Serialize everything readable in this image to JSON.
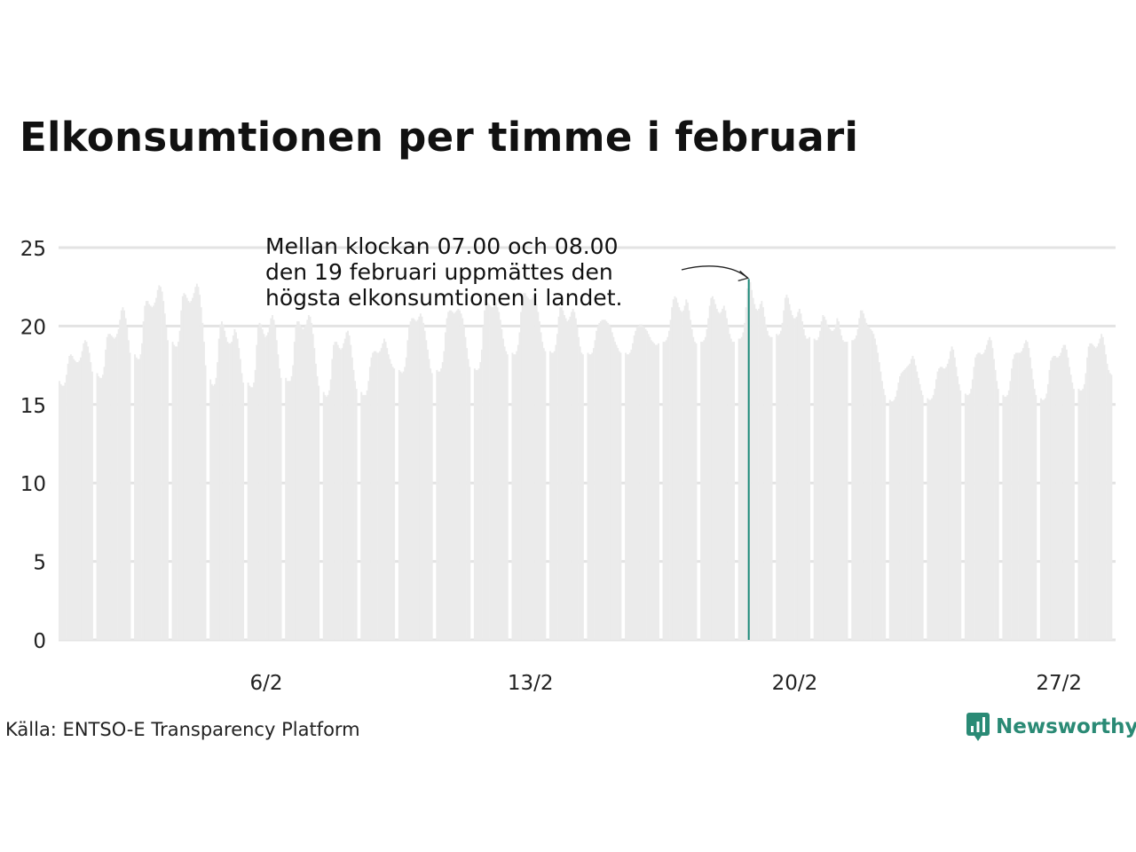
{
  "chart_data": {
    "type": "bar",
    "title": "Elkonsumtionen per timme i februari",
    "xlabel": "",
    "ylabel": "",
    "ylim": [
      0,
      25
    ],
    "yticks": [
      0,
      5,
      10,
      15,
      20,
      25
    ],
    "x_tick_labels": [
      {
        "day": 6,
        "label": "6/2"
      },
      {
        "day": 13,
        "label": "13/2"
      },
      {
        "day": 20,
        "label": "20/2"
      },
      {
        "day": 27,
        "label": "27/2"
      }
    ],
    "days_in_month": 28,
    "hours_per_day": 24,
    "daily_hourly_values": [
      [
        16.5,
        16.3,
        16.2,
        16.2,
        16.4,
        16.9,
        17.6,
        18.1,
        18.2,
        18.1,
        17.9,
        17.8,
        17.7,
        17.7,
        17.8,
        18.0,
        18.4,
        18.9,
        19.1,
        19.0,
        18.7,
        18.3,
        17.7,
        17.1
      ],
      [
        17.0,
        16.8,
        16.7,
        16.7,
        16.9,
        17.4,
        18.5,
        19.3,
        19.5,
        19.5,
        19.4,
        19.3,
        19.2,
        19.3,
        19.5,
        19.8,
        20.4,
        21.0,
        21.2,
        21.0,
        20.5,
        19.9,
        19.1,
        18.3
      ],
      [
        18.2,
        18.0,
        17.9,
        17.9,
        18.2,
        18.9,
        20.3,
        21.3,
        21.6,
        21.6,
        21.4,
        21.3,
        21.2,
        21.3,
        21.5,
        21.8,
        22.3,
        22.6,
        22.5,
        22.2,
        21.6,
        20.8,
        19.9,
        19.1
      ],
      [
        19.0,
        18.8,
        18.7,
        18.7,
        19.0,
        19.7,
        21.0,
        21.9,
        22.1,
        22.0,
        21.8,
        21.6,
        21.5,
        21.6,
        21.8,
        22.1,
        22.5,
        22.7,
        22.5,
        22.0,
        21.2,
        20.2,
        19.0,
        17.5
      ],
      [
        16.6,
        16.3,
        16.2,
        16.3,
        16.7,
        17.7,
        19.2,
        20.1,
        20.3,
        20.1,
        19.7,
        19.3,
        19.0,
        18.9,
        18.9,
        19.0,
        19.4,
        19.8,
        19.6,
        19.2,
        18.6,
        17.9,
        17.0,
        16.4
      ],
      [
        16.4,
        16.2,
        16.1,
        16.1,
        16.4,
        17.2,
        18.8,
        19.9,
        20.2,
        20.1,
        19.8,
        19.5,
        19.3,
        19.4,
        19.6,
        20.0,
        20.5,
        20.7,
        20.4,
        19.9,
        19.1,
        18.2,
        17.3,
        16.7
      ],
      [
        16.7,
        16.5,
        16.5,
        16.5,
        16.8,
        17.5,
        19.0,
        20.0,
        20.3,
        20.3,
        20.1,
        19.9,
        19.8,
        19.9,
        20.1,
        20.4,
        20.7,
        20.6,
        20.2,
        19.5,
        18.6,
        17.6,
        16.8,
        16.2
      ],
      [
        15.8,
        15.6,
        15.5,
        15.6,
        15.9,
        16.6,
        17.9,
        18.8,
        19.0,
        19.0,
        18.8,
        18.6,
        18.5,
        18.6,
        18.9,
        19.2,
        19.6,
        19.7,
        19.4,
        18.8,
        18.0,
        17.2,
        16.5,
        16.0
      ],
      [
        15.8,
        15.6,
        15.6,
        15.6,
        15.9,
        16.5,
        17.4,
        18.0,
        18.3,
        18.4,
        18.4,
        18.3,
        18.3,
        18.4,
        18.6,
        18.9,
        19.2,
        19.0,
        18.6,
        18.2,
        17.9,
        17.6,
        17.4,
        17.3
      ],
      [
        17.2,
        17.1,
        17.0,
        17.1,
        17.4,
        18.0,
        19.1,
        19.9,
        20.3,
        20.5,
        20.5,
        20.4,
        20.3,
        20.4,
        20.6,
        20.8,
        20.6,
        20.2,
        19.7,
        19.1,
        18.5,
        17.9,
        17.3,
        17.0
      ],
      [
        17.2,
        17.1,
        17.1,
        17.3,
        17.7,
        18.4,
        19.6,
        20.5,
        20.9,
        21.0,
        21.0,
        20.9,
        20.8,
        20.9,
        21.0,
        21.1,
        21.0,
        20.8,
        20.5,
        20.0,
        19.3,
        18.6,
        17.9,
        17.4
      ],
      [
        17.3,
        17.2,
        17.2,
        17.3,
        17.7,
        18.5,
        20.0,
        21.0,
        21.4,
        21.5,
        21.4,
        21.3,
        21.2,
        21.2,
        21.3,
        21.5,
        21.2,
        20.9,
        20.4,
        19.8,
        19.2,
        18.7,
        18.4,
        18.2
      ],
      [
        18.3,
        18.2,
        18.2,
        18.4,
        18.8,
        19.6,
        20.9,
        21.8,
        22.1,
        22.1,
        21.9,
        21.8,
        21.7,
        21.7,
        21.8,
        22.0,
        21.8,
        21.4,
        20.9,
        20.3,
        19.6,
        19.0,
        18.6,
        18.4
      ],
      [
        18.4,
        18.3,
        18.3,
        18.4,
        18.8,
        19.5,
        20.6,
        21.2,
        21.2,
        21.0,
        20.7,
        20.5,
        20.3,
        20.4,
        20.6,
        20.9,
        21.1,
        20.9,
        20.5,
        19.9,
        19.3,
        18.7,
        18.3,
        18.2
      ],
      [
        18.3,
        18.2,
        18.2,
        18.3,
        18.6,
        19.1,
        19.7,
        20.0,
        20.2,
        20.3,
        20.4,
        20.4,
        20.4,
        20.3,
        20.2,
        20.1,
        19.9,
        19.6,
        19.3,
        19.0,
        18.8,
        18.6,
        18.4,
        18.3
      ],
      [
        18.3,
        18.2,
        18.2,
        18.3,
        18.5,
        18.9,
        19.4,
        19.7,
        19.9,
        20.0,
        20.1,
        20.1,
        20.0,
        19.9,
        19.8,
        19.7,
        19.5,
        19.3,
        19.1,
        19.0,
        18.9,
        18.8,
        18.8,
        18.9
      ],
      [
        19.0,
        19.0,
        19.1,
        19.3,
        19.7,
        20.4,
        21.2,
        21.7,
        21.9,
        21.8,
        21.5,
        21.2,
        21.0,
        20.9,
        21.0,
        21.3,
        21.7,
        21.5,
        21.0,
        20.4,
        19.8,
        19.3,
        19.0,
        18.9
      ],
      [
        19.0,
        19.0,
        19.1,
        19.3,
        19.8,
        20.5,
        21.3,
        21.8,
        21.9,
        21.7,
        21.4,
        21.1,
        20.9,
        20.8,
        20.9,
        21.1,
        21.3,
        21.0,
        20.5,
        20.0,
        19.5,
        19.2,
        19.0,
        19.0
      ],
      [
        19.2,
        19.2,
        19.3,
        19.6,
        20.2,
        21.2,
        22.4,
        23.0,
        22.8,
        22.3,
        21.8,
        21.4,
        21.1,
        21.0,
        21.1,
        21.4,
        21.6,
        21.2,
        20.6,
        20.1,
        19.7,
        19.4,
        19.3,
        19.3
      ],
      [
        19.5,
        19.4,
        19.5,
        19.7,
        20.2,
        21.0,
        21.8,
        22.0,
        21.8,
        21.4,
        21.0,
        20.7,
        20.5,
        20.5,
        20.6,
        20.9,
        21.1,
        20.8,
        20.3,
        19.8,
        19.4,
        19.2,
        19.2,
        19.3
      ],
      [
        19.2,
        19.1,
        19.1,
        19.3,
        19.7,
        20.3,
        20.7,
        20.6,
        20.4,
        20.1,
        19.9,
        19.8,
        19.7,
        19.7,
        19.8,
        20.1,
        20.5,
        20.3,
        19.8,
        19.4,
        19.1,
        19.0,
        19.0,
        19.0
      ],
      [
        19.1,
        19.1,
        19.2,
        19.4,
        19.8,
        20.5,
        21.0,
        21.0,
        20.8,
        20.5,
        20.2,
        20.0,
        19.9,
        19.8,
        19.7,
        19.5,
        19.2,
        18.8,
        18.3,
        17.7,
        17.1,
        16.5,
        16.0,
        15.6
      ],
      [
        15.3,
        15.2,
        15.2,
        15.3,
        15.5,
        15.9,
        16.4,
        16.8,
        17.0,
        17.1,
        17.2,
        17.3,
        17.4,
        17.5,
        17.6,
        17.9,
        18.1,
        17.9,
        17.5,
        17.1,
        16.7,
        16.3,
        15.9,
        15.6
      ],
      [
        15.4,
        15.3,
        15.3,
        15.4,
        15.6,
        16.0,
        16.6,
        17.1,
        17.3,
        17.4,
        17.4,
        17.3,
        17.3,
        17.4,
        17.6,
        17.9,
        18.4,
        18.7,
        18.5,
        18.0,
        17.4,
        16.8,
        16.3,
        15.9
      ],
      [
        15.7,
        15.6,
        15.6,
        15.7,
        16.0,
        16.6,
        17.4,
        18.0,
        18.2,
        18.3,
        18.3,
        18.2,
        18.2,
        18.3,
        18.5,
        18.8,
        19.1,
        19.3,
        19.1,
        18.6,
        17.9,
        17.2,
        16.5,
        16.0
      ],
      [
        15.6,
        15.5,
        15.5,
        15.6,
        15.9,
        16.5,
        17.3,
        17.9,
        18.2,
        18.3,
        18.3,
        18.3,
        18.3,
        18.4,
        18.6,
        18.9,
        19.1,
        19.0,
        18.6,
        18.0,
        17.3,
        16.6,
        16.0,
        15.6
      ],
      [
        15.4,
        15.3,
        15.3,
        15.4,
        15.7,
        16.3,
        17.2,
        17.8,
        18.0,
        18.1,
        18.1,
        18.0,
        18.0,
        18.1,
        18.3,
        18.6,
        18.8,
        18.8,
        18.5,
        18.0,
        17.4,
        16.9,
        16.4,
        16.0
      ],
      [
        16.0,
        15.9,
        15.9,
        16.0,
        16.3,
        17.0,
        18.0,
        18.7,
        18.9,
        18.9,
        18.8,
        18.7,
        18.6,
        18.7,
        18.9,
        19.2,
        19.5,
        19.3,
        18.8,
        18.2,
        17.6,
        17.2,
        17.0,
        16.9
      ]
    ],
    "highlight": {
      "day": 19,
      "hour": 7,
      "value": 23.0,
      "color": "#1e8a7a"
    },
    "annotation": [
      "Mellan klockan 07.00 och 08.00",
      "den 19 februari uppmättes den",
      "högsta elkonsumtionen i landet."
    ],
    "bar_color": "#ebebeb",
    "grid_color": "#e3e3e3",
    "grid": true,
    "legend": "none"
  },
  "source": "Källa: ENTSO-E Transparency Platform",
  "brand": {
    "name": "Newsworthy",
    "color": "#2a8a75"
  }
}
